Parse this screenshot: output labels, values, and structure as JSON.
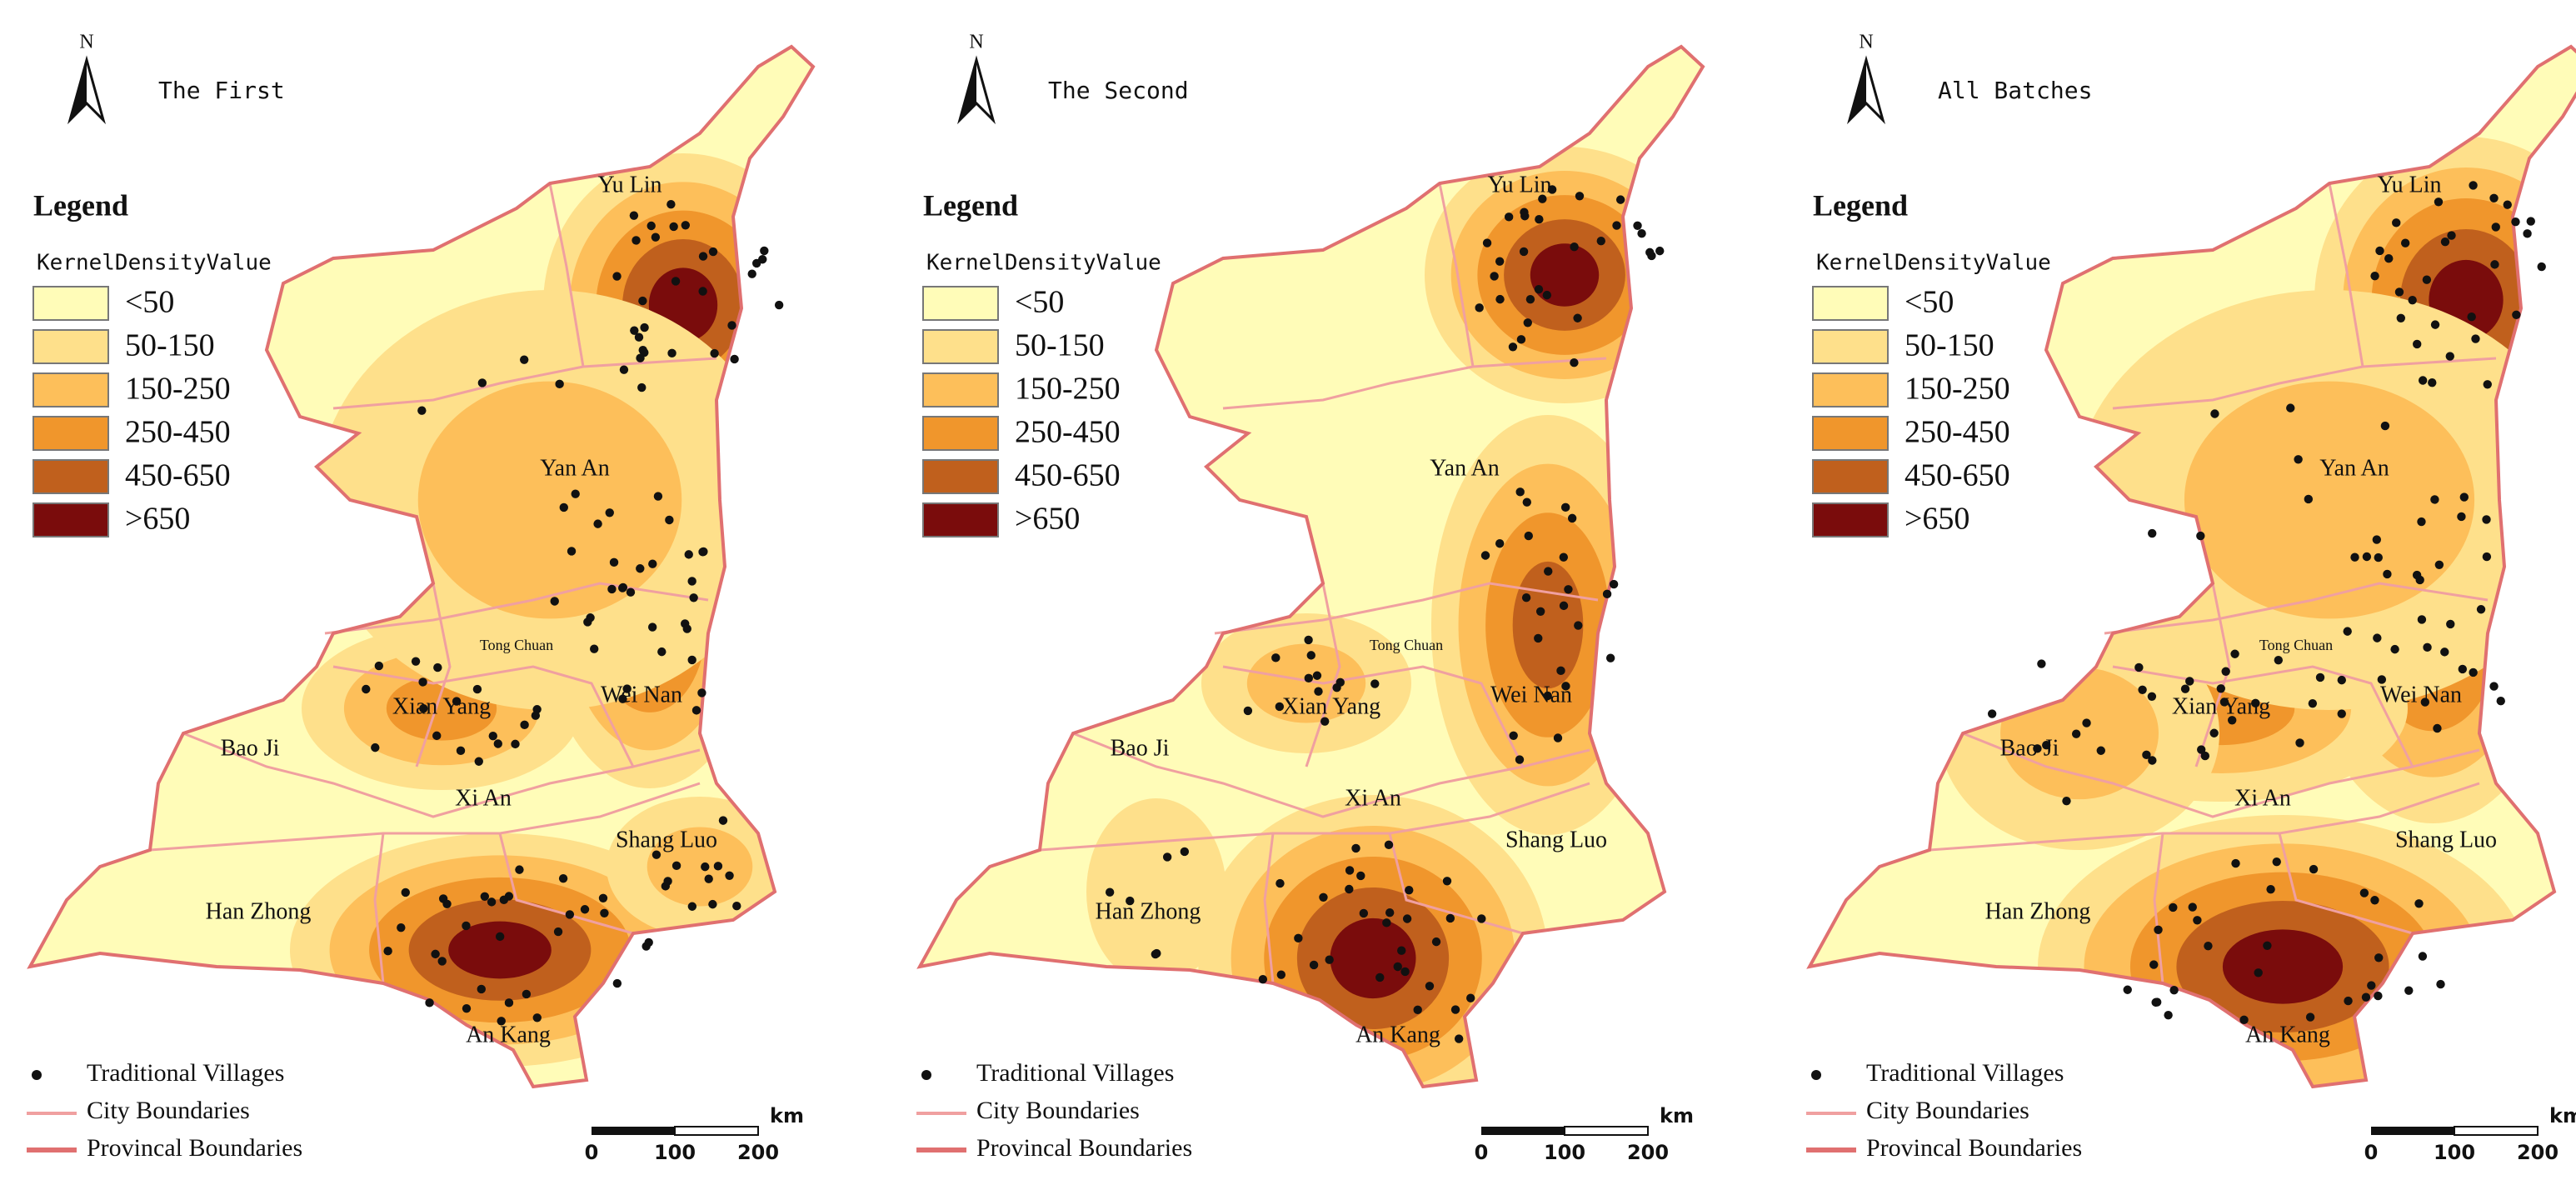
{
  "panels": [
    {
      "title": "The First"
    },
    {
      "title": "The Second"
    },
    {
      "title": "All Batches"
    }
  ],
  "north": "N",
  "legend_title": "Legend",
  "legend_subtitle": "KernelDensityValue",
  "classes": [
    {
      "label": "<50",
      "color": "#fffcb8"
    },
    {
      "label": "50-150",
      "color": "#fee08b"
    },
    {
      "label": "150-250",
      "color": "#fdbf5a"
    },
    {
      "label": "250-450",
      "color": "#f0962c"
    },
    {
      "label": "450-650",
      "color": "#c0601d"
    },
    {
      "label": ">650",
      "color": "#7a0c0c"
    }
  ],
  "cities": [
    "Yu Lin",
    "Yan An",
    "Tong Chuan",
    "Xian Yang",
    "Wei Nan",
    "Bao Ji",
    "Xi An",
    "Shang Luo",
    "Han Zhong",
    "An Kang"
  ],
  "legend_items": [
    "Traditional Villages",
    "City Boundaries",
    "Provincal Boundaries"
  ],
  "scale": {
    "labels": [
      "0",
      "100",
      "200"
    ],
    "unit": "km"
  }
}
